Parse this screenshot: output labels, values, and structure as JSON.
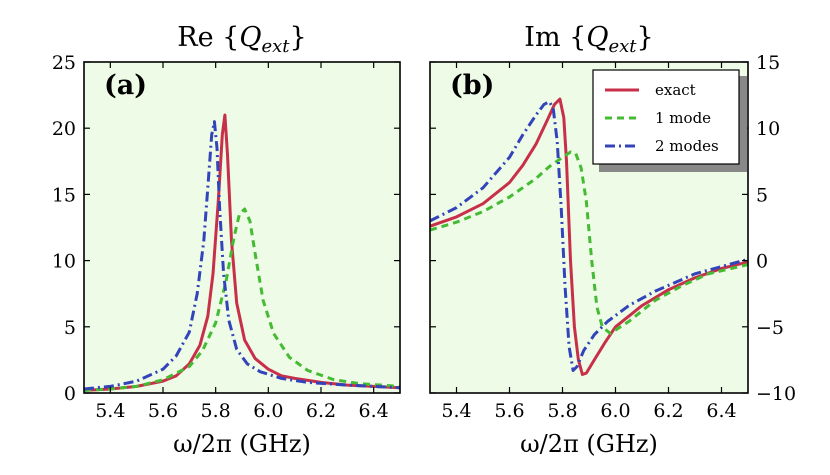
{
  "chart_data": [
    {
      "type": "line",
      "panel_label": "(a)",
      "title": "Re {Q_ext}",
      "title_main": "Re {",
      "title_var": "Q",
      "title_sub": "ext",
      "title_close": "}",
      "xlabel": "ω/2π  (GHz)",
      "ylabel": "",
      "xlim": [
        5.3,
        6.5
      ],
      "ylim": [
        0,
        25
      ],
      "xticks": [
        "5.4",
        "5.6",
        "5.8",
        "6.0",
        "6.2",
        "6.4"
      ],
      "yticks": [
        "0",
        "5",
        "10",
        "15",
        "20",
        "25"
      ],
      "y_axis_side": "left",
      "series": [
        {
          "name": "exact",
          "color": "#c8304a",
          "dash": "solid",
          "x": [
            5.3,
            5.4,
            5.5,
            5.6,
            5.65,
            5.7,
            5.74,
            5.77,
            5.79,
            5.81,
            5.825,
            5.835,
            5.845,
            5.86,
            5.88,
            5.91,
            5.95,
            6.0,
            6.05,
            6.1,
            6.2,
            6.3,
            6.4,
            6.5
          ],
          "y": [
            0.2,
            0.3,
            0.5,
            0.9,
            1.3,
            2.2,
            3.6,
            5.8,
            9.0,
            14.5,
            19.5,
            21.0,
            18.0,
            11.5,
            6.8,
            4.0,
            2.6,
            1.8,
            1.3,
            1.1,
            0.8,
            0.6,
            0.5,
            0.4
          ]
        },
        {
          "name": "1 mode",
          "color": "#44bb33",
          "dash": "dashed",
          "x": [
            5.3,
            5.4,
            5.5,
            5.6,
            5.7,
            5.75,
            5.8,
            5.84,
            5.87,
            5.89,
            5.91,
            5.93,
            5.95,
            5.98,
            6.02,
            6.08,
            6.15,
            6.25,
            6.35,
            6.5
          ],
          "y": [
            0.2,
            0.3,
            0.5,
            1.0,
            2.0,
            3.2,
            5.3,
            8.5,
            11.8,
            13.5,
            13.9,
            13.0,
            10.5,
            7.0,
            4.5,
            2.7,
            1.7,
            1.0,
            0.7,
            0.5
          ]
        },
        {
          "name": "2 modes",
          "color": "#3344bb",
          "dash": "dashdot",
          "x": [
            5.3,
            5.4,
            5.5,
            5.6,
            5.65,
            5.7,
            5.73,
            5.755,
            5.77,
            5.785,
            5.795,
            5.805,
            5.815,
            5.83,
            5.85,
            5.88,
            5.92,
            5.97,
            6.05,
            6.15,
            6.3,
            6.5
          ],
          "y": [
            0.3,
            0.5,
            0.9,
            1.8,
            2.8,
            4.6,
            7.5,
            11.5,
            15.5,
            19.5,
            20.5,
            18.5,
            14.0,
            9.0,
            5.5,
            3.3,
            2.2,
            1.6,
            1.1,
            0.8,
            0.6,
            0.4
          ]
        }
      ]
    },
    {
      "type": "line",
      "panel_label": "(b)",
      "title": "Im {Q_ext}",
      "title_main": "Im {",
      "title_var": "Q",
      "title_sub": "ext",
      "title_close": "}",
      "xlabel": "ω/2π  (GHz)",
      "ylabel": "",
      "xlim": [
        5.3,
        6.5
      ],
      "ylim": [
        -10,
        15
      ],
      "xticks": [
        "5.4",
        "5.6",
        "5.8",
        "6.0",
        "6.2",
        "6.4"
      ],
      "yticks": [
        "−10",
        "−5",
        "0",
        "5",
        "10",
        "15"
      ],
      "y_axis_side": "right",
      "legend": {
        "position": "top-right",
        "entries": [
          "exact",
          "1 mode",
          "2 modes"
        ]
      },
      "series": [
        {
          "name": "exact",
          "color": "#c8304a",
          "dash": "solid",
          "x": [
            5.3,
            5.4,
            5.5,
            5.6,
            5.65,
            5.7,
            5.74,
            5.77,
            5.79,
            5.805,
            5.815,
            5.83,
            5.845,
            5.86,
            5.875,
            5.89,
            5.92,
            5.96,
            6.0,
            6.1,
            6.2,
            6.3,
            6.4,
            6.5
          ],
          "y": [
            2.6,
            3.3,
            4.3,
            5.9,
            7.2,
            8.8,
            10.5,
            11.8,
            12.2,
            10.8,
            7.5,
            0.0,
            -5.0,
            -7.5,
            -8.6,
            -8.5,
            -7.5,
            -6.2,
            -5.0,
            -3.4,
            -2.2,
            -1.3,
            -0.6,
            -0.1
          ]
        },
        {
          "name": "1 mode",
          "color": "#44bb33",
          "dash": "dashed",
          "x": [
            5.3,
            5.4,
            5.5,
            5.6,
            5.7,
            5.75,
            5.8,
            5.83,
            5.85,
            5.87,
            5.89,
            5.91,
            5.93,
            5.95,
            5.98,
            6.05,
            6.15,
            6.25,
            6.35,
            6.5
          ],
          "y": [
            2.3,
            2.9,
            3.7,
            4.8,
            6.2,
            7.1,
            7.8,
            8.2,
            8.1,
            7.0,
            4.5,
            0.0,
            -3.5,
            -5.0,
            -5.5,
            -4.6,
            -3.0,
            -1.9,
            -1.0,
            -0.3
          ]
        },
        {
          "name": "2 modes",
          "color": "#3344bb",
          "dash": "dashdot",
          "x": [
            5.3,
            5.4,
            5.5,
            5.6,
            5.65,
            5.7,
            5.73,
            5.75,
            5.765,
            5.78,
            5.795,
            5.81,
            5.825,
            5.84,
            5.855,
            5.88,
            5.92,
            5.97,
            6.05,
            6.15,
            6.3,
            6.5
          ],
          "y": [
            3.0,
            4.0,
            5.5,
            7.8,
            9.5,
            11.0,
            11.8,
            12.0,
            11.5,
            9.0,
            4.0,
            -2.0,
            -6.5,
            -8.3,
            -8.0,
            -6.8,
            -5.6,
            -4.6,
            -3.4,
            -2.3,
            -1.0,
            0.1
          ]
        }
      ]
    }
  ]
}
